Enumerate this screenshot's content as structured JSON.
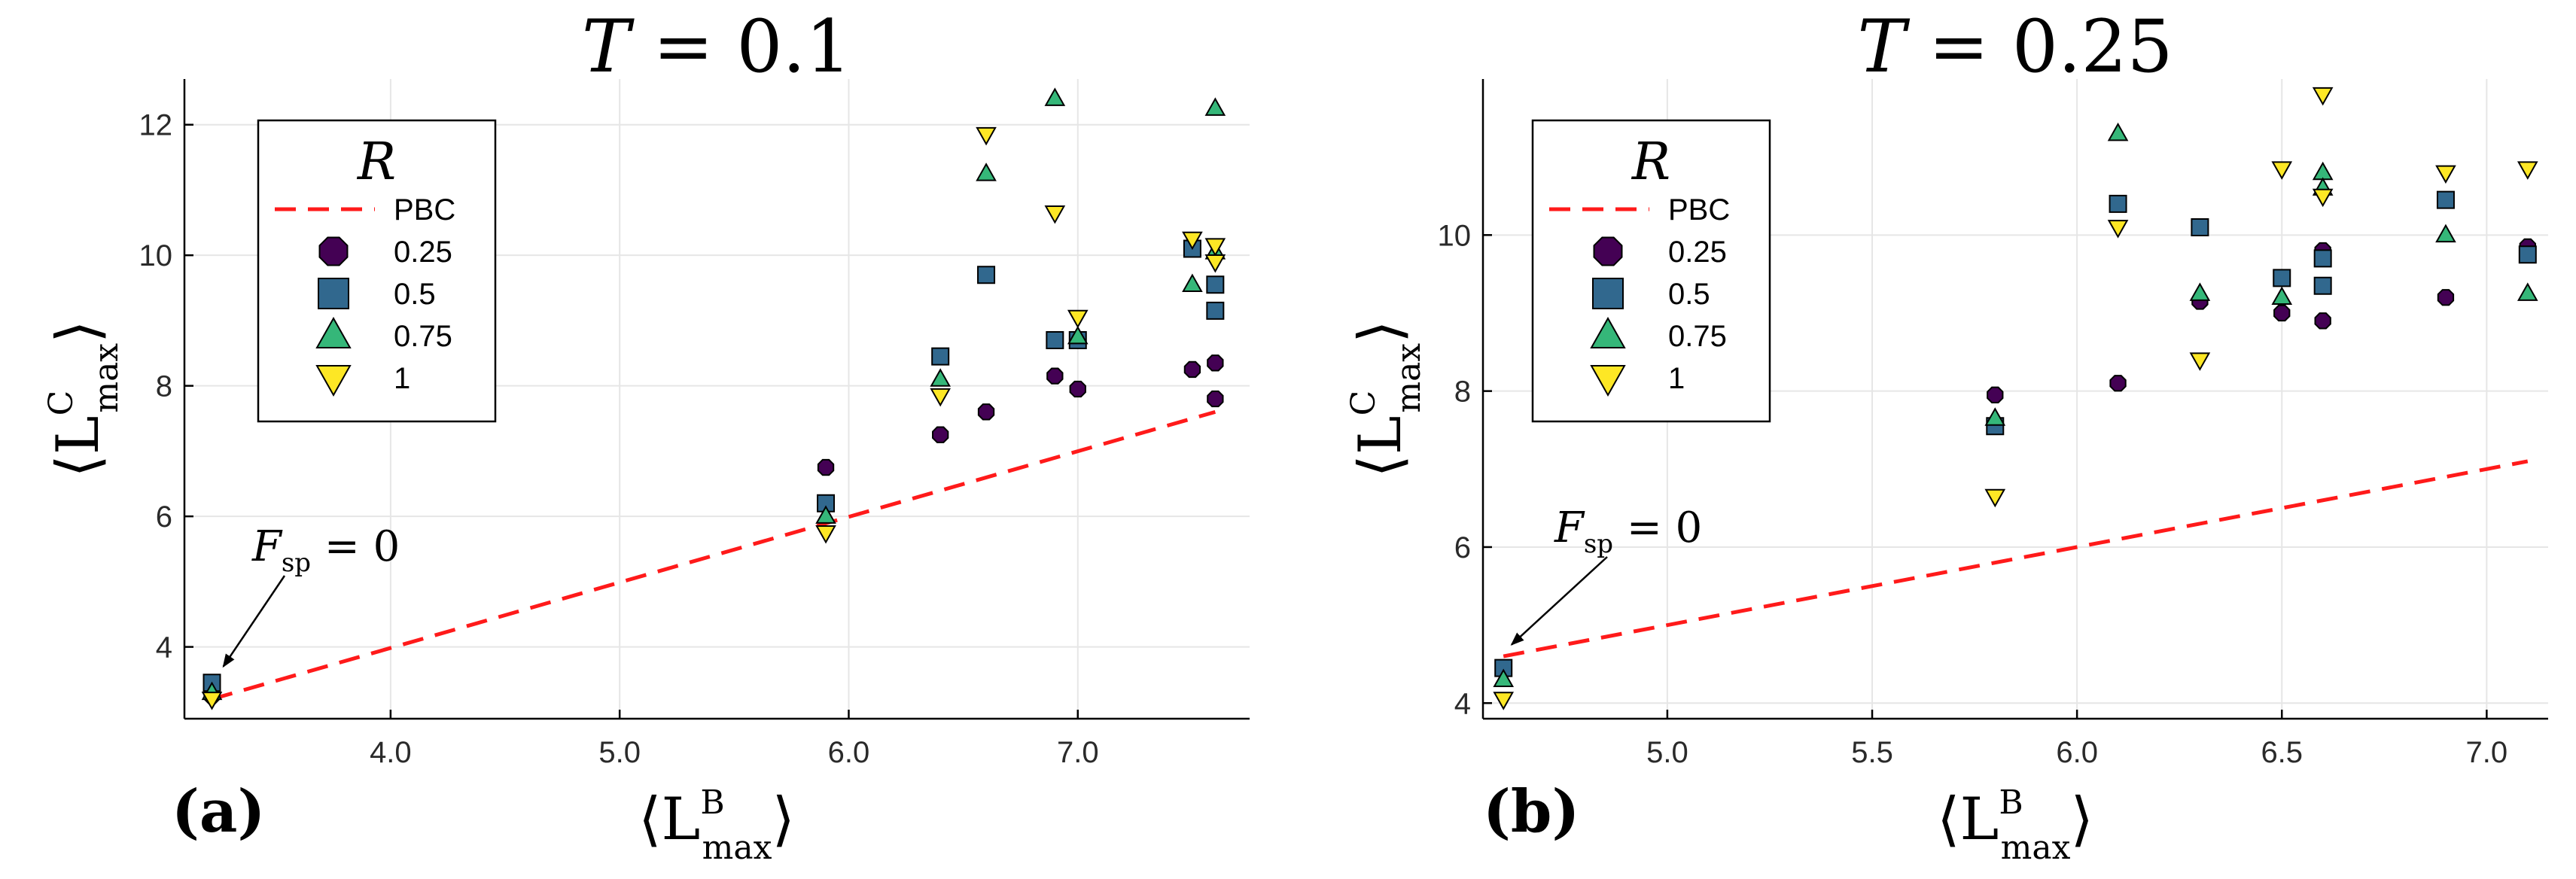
{
  "legend": {
    "title": "R",
    "pbc_label": "PBC",
    "entries": [
      {
        "label": "0.25",
        "marker": "octagon",
        "color": "#440154"
      },
      {
        "label": "0.5",
        "marker": "square",
        "color": "#31688e"
      },
      {
        "label": "0.75",
        "marker": "triangle-up",
        "color": "#35b779"
      },
      {
        "label": "1",
        "marker": "triangle-down",
        "color": "#fde725"
      }
    ]
  },
  "colors": {
    "pbc_line": "#ff1a1a",
    "grid": "#e6e6e6"
  },
  "chart_data": [
    {
      "type": "scatter",
      "panel_label": "(a)",
      "title": {
        "var": "T",
        "eq": "= 0.1"
      },
      "xlabel": {
        "base": "⟨L",
        "sup": "B",
        "sub": "max",
        "close": "⟩"
      },
      "ylabel": {
        "base": "⟨L",
        "sup": "C",
        "sub": "max",
        "close": "⟩"
      },
      "xlim": [
        3.1,
        7.75
      ],
      "ylim": [
        2.9,
        12.7
      ],
      "xticks": [
        4.0,
        5.0,
        6.0,
        7.0
      ],
      "xtick_labels": [
        "4.0",
        "5.0",
        "6.0",
        "7.0"
      ],
      "yticks": [
        4,
        6,
        8,
        10,
        12
      ],
      "ytick_labels": [
        "4",
        "6",
        "8",
        "10",
        "12"
      ],
      "pbc_line": {
        "x": [
          3.22,
          7.6
        ],
        "y": [
          3.2,
          7.6
        ]
      },
      "annotation": {
        "text_var": "F",
        "text_sub": "sp",
        "text_eq": "= 0",
        "points_to": {
          "x": 3.27,
          "y": 3.7
        }
      },
      "series": [
        {
          "name": "0.25",
          "x": [
            3.22,
            5.9,
            6.4,
            6.6,
            6.9,
            7.0,
            7.5,
            7.6,
            7.6
          ],
          "y": [
            3.25,
            6.75,
            7.25,
            7.6,
            8.15,
            7.95,
            8.25,
            8.35,
            7.8
          ]
        },
        {
          "name": "0.5",
          "x": [
            3.22,
            5.9,
            6.4,
            6.6,
            6.9,
            7.0,
            7.5,
            7.6,
            7.6
          ],
          "y": [
            3.45,
            6.2,
            8.45,
            9.7,
            8.7,
            8.7,
            10.1,
            9.55,
            9.15
          ]
        },
        {
          "name": "0.75",
          "x": [
            3.22,
            5.9,
            6.4,
            6.6,
            6.9,
            7.0,
            7.5,
            7.6,
            7.6
          ],
          "y": [
            3.3,
            6.0,
            8.1,
            11.25,
            12.4,
            8.75,
            9.55,
            12.25,
            10.05
          ]
        },
        {
          "name": "1",
          "x": [
            3.22,
            5.9,
            6.4,
            6.6,
            6.9,
            7.0,
            7.5,
            7.6,
            7.6
          ],
          "y": [
            3.2,
            5.75,
            7.85,
            11.85,
            10.65,
            9.05,
            10.25,
            10.15,
            9.9
          ]
        }
      ]
    },
    {
      "type": "scatter",
      "panel_label": "(b)",
      "title": {
        "var": "T",
        "eq": "= 0.25"
      },
      "xlabel": {
        "base": "⟨L",
        "sup": "B",
        "sub": "max",
        "close": "⟩"
      },
      "ylabel": {
        "base": "⟨L",
        "sup": "C",
        "sub": "max",
        "close": "⟩"
      },
      "xlim": [
        4.55,
        7.15
      ],
      "ylim": [
        3.8,
        12.0
      ],
      "xticks": [
        5.0,
        5.5,
        6.0,
        6.5,
        7.0
      ],
      "xtick_labels": [
        "5.0",
        "5.5",
        "6.0",
        "6.5",
        "7.0"
      ],
      "yticks": [
        4,
        6,
        8,
        10
      ],
      "ytick_labels": [
        "4",
        "6",
        "8",
        "10"
      ],
      "pbc_line": {
        "x": [
          4.6,
          7.1
        ],
        "y": [
          4.6,
          7.1
        ]
      },
      "annotation": {
        "text_var": "F",
        "text_sub": "sp",
        "text_eq": "= 0",
        "points_to": {
          "x": 4.62,
          "y": 4.75
        }
      },
      "series": [
        {
          "name": "0.25",
          "x": [
            4.6,
            5.8,
            6.1,
            6.3,
            6.5,
            6.6,
            6.6,
            6.9,
            7.1
          ],
          "y": [
            4.45,
            7.95,
            8.1,
            9.15,
            9.0,
            8.9,
            9.8,
            9.2,
            9.85
          ]
        },
        {
          "name": "0.5",
          "x": [
            4.6,
            5.8,
            6.1,
            6.3,
            6.5,
            6.6,
            6.6,
            6.9,
            7.1
          ],
          "y": [
            4.45,
            7.55,
            10.4,
            10.1,
            9.45,
            9.35,
            9.7,
            10.45,
            9.75
          ]
        },
        {
          "name": "0.75",
          "x": [
            4.6,
            5.8,
            6.1,
            6.3,
            6.5,
            6.6,
            6.6,
            6.9,
            7.1
          ],
          "y": [
            4.3,
            7.65,
            11.3,
            9.25,
            9.2,
            10.8,
            10.6,
            10.0,
            9.25
          ]
        },
        {
          "name": "1",
          "x": [
            4.6,
            5.8,
            6.1,
            6.3,
            6.5,
            6.6,
            6.6,
            6.9,
            7.1
          ],
          "y": [
            4.05,
            6.65,
            10.1,
            8.4,
            10.85,
            11.8,
            10.5,
            10.8,
            10.85
          ]
        }
      ]
    }
  ]
}
